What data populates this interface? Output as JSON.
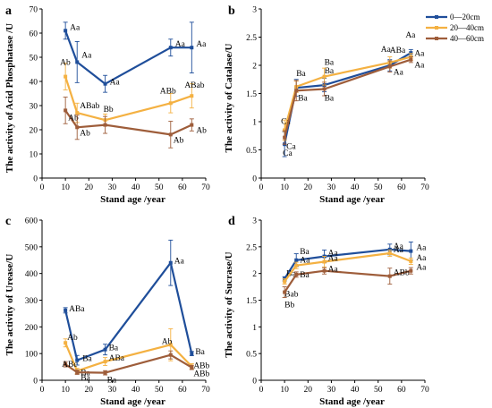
{
  "legend": {
    "entries": [
      {
        "name": "0—20cm",
        "color": "#1f4e9a"
      },
      {
        "name": "20—40cm",
        "color": "#f4b142"
      },
      {
        "name": "40—60cm",
        "color": "#9e5d3a"
      }
    ]
  },
  "chart_data": [
    {
      "panel": "a",
      "type": "line",
      "xlabel": "Stand age /year",
      "ylabel": "The activity of Acid Phosphatase /U",
      "xlim": [
        0,
        70
      ],
      "ylim": [
        0,
        70
      ],
      "xticks": [
        "0",
        "10",
        "20",
        "30",
        "40",
        "50",
        "60",
        "70"
      ],
      "yticks": [
        "0",
        "10",
        "20",
        "30",
        "40",
        "50",
        "60",
        "70"
      ],
      "x": [
        10,
        15,
        27,
        55,
        64
      ],
      "series": [
        {
          "name": "0—20cm",
          "color": "#1f4e9a",
          "values": [
            61,
            48,
            39,
            54,
            54
          ],
          "err": [
            3.5,
            8.5,
            3.5,
            3.5,
            10.5
          ],
          "labels": [
            "Aa",
            "Aa",
            "Aa",
            "Aa",
            "Aa"
          ]
        },
        {
          "name": "20—40cm",
          "color": "#f4b142",
          "values": [
            42,
            27,
            24,
            31,
            34
          ],
          "err": [
            5.5,
            4,
            2.5,
            4,
            5
          ],
          "labels": [
            "Ab",
            "ABab",
            "Bb",
            "ABb",
            "ABab"
          ]
        },
        {
          "name": "40—60cm",
          "color": "#9e5d3a",
          "values": [
            28,
            21,
            22,
            18,
            22
          ],
          "err": [
            5.5,
            5,
            3.5,
            5.5,
            2.5
          ],
          "labels": [
            "Ab",
            "Ab",
            "",
            "Ab",
            "Ab"
          ]
        }
      ]
    },
    {
      "panel": "b",
      "type": "line",
      "xlabel": "Stand age /year",
      "ylabel": "The activity of Catalase/U",
      "xlim": [
        0,
        70
      ],
      "ylim": [
        0,
        3
      ],
      "xticks": [
        "0",
        "10",
        "20",
        "30",
        "40",
        "50",
        "60",
        "70"
      ],
      "yticks": [
        "0",
        "0.5",
        "1",
        "1.5",
        "2",
        "2.5",
        "3"
      ],
      "x": [
        10,
        15,
        27,
        55,
        64
      ],
      "series": [
        {
          "name": "0—20cm",
          "color": "#1f4e9a",
          "values": [
            0.6,
            1.6,
            1.65,
            2.0,
            2.22
          ],
          "err": [
            0.22,
            0.15,
            0.12,
            0.1,
            0.06
          ],
          "labels": [
            "Ca",
            "Ba",
            "Ba",
            "Aa",
            "Aa"
          ]
        },
        {
          "name": "20—40cm",
          "color": "#f4b142",
          "values": [
            0.85,
            1.62,
            1.8,
            2.05,
            2.15
          ],
          "err": [
            0.18,
            0.1,
            0.15,
            0.1,
            0.06
          ],
          "labels": [
            "Ca",
            "",
            "Ba",
            "ABa",
            "Aa"
          ]
        },
        {
          "name": "40—60cm",
          "color": "#9e5d3a",
          "values": [
            0.72,
            1.55,
            1.58,
            1.98,
            2.1
          ],
          "err": [
            0.12,
            0.18,
            0.12,
            0.1,
            0.05
          ],
          "labels": [
            "Ca",
            "Ba",
            "Ba",
            "Aa",
            "Aa"
          ]
        }
      ]
    },
    {
      "panel": "c",
      "type": "line",
      "xlabel": "Stand age /year",
      "ylabel": "The activity of Urease/U",
      "xlim": [
        0,
        70
      ],
      "ylim": [
        0,
        600
      ],
      "xticks": [
        "0",
        "10",
        "20",
        "30",
        "40",
        "50",
        "60",
        "70"
      ],
      "yticks": [
        "0",
        "100",
        "200",
        "300",
        "400",
        "500",
        "600"
      ],
      "x": [
        10,
        15,
        27,
        55,
        64
      ],
      "series": [
        {
          "name": "0—20cm",
          "color": "#1f4e9a",
          "values": [
            262,
            75,
            115,
            440,
            100
          ],
          "err": [
            10,
            18,
            20,
            85,
            8
          ],
          "labels": [
            "ABa",
            "Ba",
            "Ba",
            "Aa",
            "Ba"
          ]
        },
        {
          "name": "20—40cm",
          "color": "#f4b142",
          "values": [
            140,
            35,
            70,
            133,
            52
          ],
          "err": [
            15,
            10,
            15,
            60,
            10
          ],
          "labels": [
            "Ab",
            "Ba",
            "ABa",
            "Ab",
            "ABb"
          ]
        },
        {
          "name": "40—60cm",
          "color": "#9e5d3a",
          "values": [
            60,
            30,
            28,
            95,
            48
          ],
          "err": [
            10,
            8,
            8,
            15,
            8
          ],
          "labels": [
            "ABc",
            "Ba",
            "Ba",
            "",
            "ABb"
          ]
        }
      ]
    },
    {
      "panel": "d",
      "type": "line",
      "xlabel": "Stand age /year",
      "ylabel": "The activity of Sucrase/U",
      "xlim": [
        0,
        70
      ],
      "ylim": [
        0,
        3
      ],
      "xticks": [
        "0",
        "10",
        "20",
        "30",
        "40",
        "50",
        "60",
        "70"
      ],
      "yticks": [
        "0",
        "0.5",
        "1",
        "1.5",
        "2",
        "2.5",
        "3"
      ],
      "x": [
        10,
        15,
        27,
        55,
        64
      ],
      "series": [
        {
          "name": "0—20cm",
          "color": "#1f4e9a",
          "values": [
            1.9,
            2.25,
            2.32,
            2.45,
            2.42
          ],
          "err": [
            0.04,
            0.12,
            0.12,
            0.1,
            0.17
          ],
          "labels": [
            "Ba",
            "Ba",
            "Aa",
            "Aa",
            "Aa"
          ]
        },
        {
          "name": "20—40cm",
          "color": "#f4b142",
          "values": [
            1.85,
            2.15,
            2.22,
            2.38,
            2.23
          ],
          "err": [
            0.05,
            0.06,
            0.1,
            0.06,
            0.06
          ],
          "labels": [
            "Bab",
            "Aa",
            "Aa",
            "Aa",
            "Aa"
          ]
        },
        {
          "name": "40—60cm",
          "color": "#9e5d3a",
          "values": [
            1.65,
            1.98,
            2.05,
            1.95,
            2.05
          ],
          "err": [
            0.1,
            0.05,
            0.06,
            0.15,
            0.06
          ],
          "labels": [
            "Bb",
            "Ba",
            "Aa",
            "ABb",
            "Aa"
          ]
        }
      ]
    }
  ]
}
